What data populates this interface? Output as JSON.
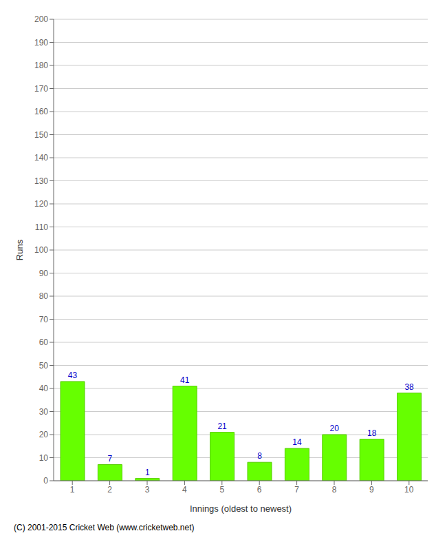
{
  "chart_data": {
    "type": "bar",
    "categories": [
      "1",
      "2",
      "3",
      "4",
      "5",
      "6",
      "7",
      "8",
      "9",
      "10"
    ],
    "values": [
      43,
      7,
      1,
      41,
      21,
      8,
      14,
      20,
      18,
      38
    ],
    "color": "#66ff00",
    "xlabel": "Innings (oldest to newest)",
    "ylabel": "Runs",
    "ylim": [
      0,
      200
    ],
    "yticks": [
      0,
      10,
      20,
      30,
      40,
      50,
      60,
      70,
      80,
      90,
      100,
      110,
      120,
      130,
      140,
      150,
      160,
      170,
      180,
      190,
      200
    ],
    "grid": true,
    "data_labels": true,
    "annotations": [
      "(C) 2001-2015 Cricket Web (www.cricketweb.net)"
    ]
  }
}
